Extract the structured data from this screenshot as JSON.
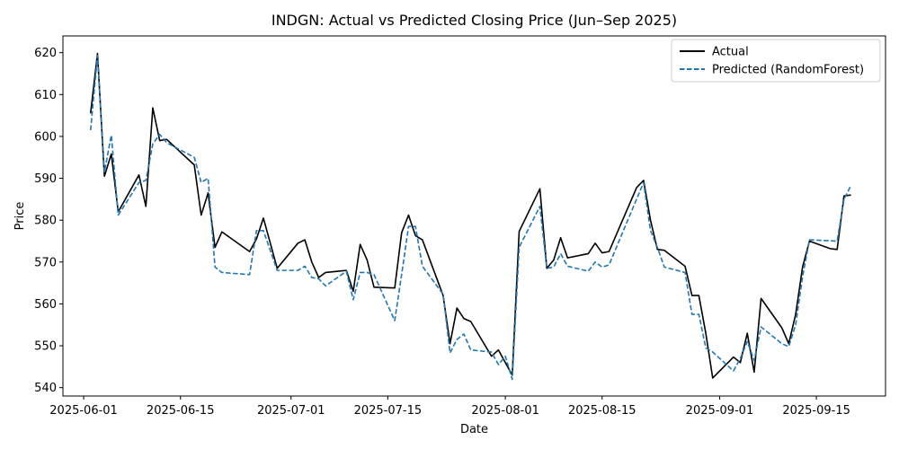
{
  "chart_data": {
    "type": "line",
    "title": "INDGN: Actual vs Predicted Closing Price (Jun–Sep 2025)",
    "xlabel": "Date",
    "ylabel": "Price",
    "xlim": [
      "2025-05-29",
      "2025-09-25"
    ],
    "ylim": [
      538,
      624
    ],
    "x_ticks": [
      "2025-06-01",
      "2025-06-15",
      "2025-07-01",
      "2025-07-15",
      "2025-08-01",
      "2025-08-15",
      "2025-09-01",
      "2025-09-15"
    ],
    "y_ticks": [
      540,
      550,
      560,
      570,
      580,
      590,
      600,
      610,
      620
    ],
    "grid": false,
    "legend_position": "top-right",
    "series": [
      {
        "name": "Actual",
        "color": "#000000",
        "style": "solid",
        "points": [
          [
            "2025-06-02",
            605.5
          ],
          [
            "2025-06-03",
            619.8
          ],
          [
            "2025-06-04",
            590.5
          ],
          [
            "2025-06-05",
            595.8
          ],
          [
            "2025-06-06",
            582.0
          ],
          [
            "2025-06-09",
            590.8
          ],
          [
            "2025-06-10",
            583.3
          ],
          [
            "2025-06-11",
            606.8
          ],
          [
            "2025-06-12",
            599.0
          ],
          [
            "2025-06-13",
            599.3
          ],
          [
            "2025-06-17",
            593.2
          ],
          [
            "2025-06-18",
            581.2
          ],
          [
            "2025-06-19",
            586.5
          ],
          [
            "2025-06-20",
            573.5
          ],
          [
            "2025-06-21",
            577.2
          ],
          [
            "2025-06-25",
            572.5
          ],
          [
            "2025-06-26",
            575.5
          ],
          [
            "2025-06-27",
            580.5
          ],
          [
            "2025-06-29",
            568.5
          ],
          [
            "2025-07-02",
            574.5
          ],
          [
            "2025-07-03",
            575.3
          ],
          [
            "2025-07-04",
            570.0
          ],
          [
            "2025-07-05",
            566.3
          ],
          [
            "2025-07-06",
            567.5
          ],
          [
            "2025-07-09",
            568.0
          ],
          [
            "2025-07-10",
            563.0
          ],
          [
            "2025-07-11",
            574.2
          ],
          [
            "2025-07-12",
            570.5
          ],
          [
            "2025-07-13",
            564.0
          ],
          [
            "2025-07-16",
            563.8
          ],
          [
            "2025-07-17",
            577.0
          ],
          [
            "2025-07-18",
            581.2
          ],
          [
            "2025-07-19",
            576.3
          ],
          [
            "2025-07-20",
            575.3
          ],
          [
            "2025-07-23",
            562.0
          ],
          [
            "2025-07-24",
            550.5
          ],
          [
            "2025-07-25",
            559.0
          ],
          [
            "2025-07-26",
            556.5
          ],
          [
            "2025-07-27",
            555.8
          ],
          [
            "2025-07-30",
            547.5
          ],
          [
            "2025-07-31",
            549.0
          ],
          [
            "2025-08-02",
            543.0
          ],
          [
            "2025-08-03",
            577.3
          ],
          [
            "2025-08-06",
            587.5
          ],
          [
            "2025-08-07",
            568.5
          ],
          [
            "2025-08-08",
            570.5
          ],
          [
            "2025-08-09",
            575.8
          ],
          [
            "2025-08-10",
            571.0
          ],
          [
            "2025-08-13",
            572.0
          ],
          [
            "2025-08-14",
            574.5
          ],
          [
            "2025-08-15",
            572.2
          ],
          [
            "2025-08-16",
            572.5
          ],
          [
            "2025-08-20",
            587.8
          ],
          [
            "2025-08-21",
            589.5
          ],
          [
            "2025-08-22",
            580.0
          ],
          [
            "2025-08-23",
            573.0
          ],
          [
            "2025-08-24",
            572.8
          ],
          [
            "2025-08-27",
            569.0
          ],
          [
            "2025-08-28",
            562.0
          ],
          [
            "2025-08-29",
            562.0
          ],
          [
            "2025-08-30",
            553.0
          ],
          [
            "2025-08-31",
            542.3
          ],
          [
            "2025-09-03",
            547.3
          ],
          [
            "2025-09-04",
            546.0
          ],
          [
            "2025-09-05",
            553.0
          ],
          [
            "2025-09-06",
            543.7
          ],
          [
            "2025-09-07",
            561.3
          ],
          [
            "2025-09-10",
            554.3
          ],
          [
            "2025-09-11",
            550.5
          ],
          [
            "2025-09-12",
            557.5
          ],
          [
            "2025-09-13",
            568.8
          ],
          [
            "2025-09-14",
            575.0
          ],
          [
            "2025-09-17",
            573.2
          ],
          [
            "2025-09-18",
            573.0
          ],
          [
            "2025-09-19",
            585.8
          ],
          [
            "2025-09-20",
            586.0
          ]
        ]
      },
      {
        "name": "Predicted (RandomForest)",
        "color": "#1f77b4",
        "style": "dashed",
        "points": [
          [
            "2025-06-02",
            601.5
          ],
          [
            "2025-06-03",
            619.3
          ],
          [
            "2025-06-04",
            591.5
          ],
          [
            "2025-06-05",
            600.3
          ],
          [
            "2025-06-06",
            581.2
          ],
          [
            "2025-06-09",
            589.0
          ],
          [
            "2025-06-10",
            589.5
          ],
          [
            "2025-06-11",
            598.2
          ],
          [
            "2025-06-12",
            600.5
          ],
          [
            "2025-06-13",
            598.5
          ],
          [
            "2025-06-17",
            595.0
          ],
          [
            "2025-06-18",
            589.0
          ],
          [
            "2025-06-19",
            590.0
          ],
          [
            "2025-06-20",
            568.8
          ],
          [
            "2025-06-21",
            567.5
          ],
          [
            "2025-06-25",
            567.0
          ],
          [
            "2025-06-26",
            577.5
          ],
          [
            "2025-06-27",
            577.5
          ],
          [
            "2025-06-29",
            568.0
          ],
          [
            "2025-07-02",
            568.0
          ],
          [
            "2025-07-03",
            569.0
          ],
          [
            "2025-07-04",
            566.3
          ],
          [
            "2025-07-05",
            566.0
          ],
          [
            "2025-07-06",
            564.3
          ],
          [
            "2025-07-09",
            567.8
          ],
          [
            "2025-07-10",
            561.0
          ],
          [
            "2025-07-11",
            567.5
          ],
          [
            "2025-07-12",
            567.5
          ],
          [
            "2025-07-13",
            567.0
          ],
          [
            "2025-07-16",
            556.0
          ],
          [
            "2025-07-17",
            567.0
          ],
          [
            "2025-07-18",
            578.5
          ],
          [
            "2025-07-19",
            578.5
          ],
          [
            "2025-07-20",
            569.0
          ],
          [
            "2025-07-23",
            562.3
          ],
          [
            "2025-07-24",
            548.3
          ],
          [
            "2025-07-25",
            551.5
          ],
          [
            "2025-07-26",
            552.8
          ],
          [
            "2025-07-27",
            549.0
          ],
          [
            "2025-07-30",
            548.5
          ],
          [
            "2025-07-31",
            545.5
          ],
          [
            "2025-08-01",
            547.5
          ],
          [
            "2025-08-02",
            542.0
          ],
          [
            "2025-08-03",
            573.5
          ],
          [
            "2025-08-06",
            583.3
          ],
          [
            "2025-08-07",
            568.5
          ],
          [
            "2025-08-08",
            568.8
          ],
          [
            "2025-08-09",
            572.0
          ],
          [
            "2025-08-10",
            569.0
          ],
          [
            "2025-08-13",
            567.8
          ],
          [
            "2025-08-14",
            570.0
          ],
          [
            "2025-08-15",
            568.8
          ],
          [
            "2025-08-16",
            569.3
          ],
          [
            "2025-08-21",
            589.0
          ],
          [
            "2025-08-22",
            577.5
          ],
          [
            "2025-08-23",
            573.5
          ],
          [
            "2025-08-24",
            568.8
          ],
          [
            "2025-08-27",
            567.5
          ],
          [
            "2025-08-28",
            557.5
          ],
          [
            "2025-08-29",
            557.5
          ],
          [
            "2025-08-30",
            549.5
          ],
          [
            "2025-08-31",
            548.5
          ],
          [
            "2025-09-03",
            544.0
          ],
          [
            "2025-09-04",
            547.0
          ],
          [
            "2025-09-05",
            551.0
          ],
          [
            "2025-09-06",
            546.5
          ],
          [
            "2025-09-07",
            554.5
          ],
          [
            "2025-09-10",
            550.5
          ],
          [
            "2025-09-11",
            549.8
          ],
          [
            "2025-09-12",
            555.0
          ],
          [
            "2025-09-13",
            566.5
          ],
          [
            "2025-09-14",
            575.3
          ],
          [
            "2025-09-18",
            575.0
          ],
          [
            "2025-09-19",
            585.0
          ],
          [
            "2025-09-20",
            588.3
          ]
        ]
      }
    ]
  }
}
